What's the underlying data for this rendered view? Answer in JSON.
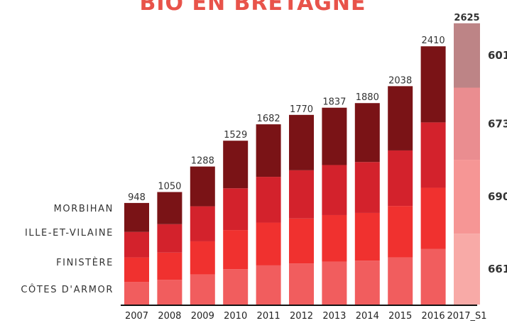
{
  "chart_data": {
    "type": "bar",
    "stacked": true,
    "title": "BIO EN BRETAGNE",
    "categories": [
      "2007",
      "2008",
      "2009",
      "2010",
      "2011",
      "2012",
      "2013",
      "2014",
      "2015",
      "2016",
      "2017_S1"
    ],
    "totals": [
      "948",
      "1050",
      "1288",
      "1529",
      "1682",
      "1770",
      "1837",
      "1880",
      "2038",
      "2410",
      "2625"
    ],
    "series": [
      {
        "name": "CÔTES D'ARMOR",
        "values": [
          210,
          230,
          280,
          330,
          365,
          383,
          400,
          410,
          440,
          520,
          661
        ],
        "color": "#f15d5e"
      },
      {
        "name": "FINISTÈRE",
        "values": [
          230,
          255,
          310,
          365,
          400,
          420,
          435,
          445,
          480,
          570,
          690
        ],
        "color": "#f0312f"
      },
      {
        "name": "ILLE-ET-VILAINE",
        "values": [
          238,
          265,
          327,
          390,
          427,
          450,
          467,
          475,
          518,
          610,
          673
        ],
        "color": "#d3222c"
      },
      {
        "name": "MORBIHAN",
        "values": [
          270,
          300,
          371,
          444,
          490,
          517,
          535,
          550,
          600,
          710,
          601
        ],
        "color": "#7a1316"
      }
    ],
    "last_bar_colors": [
      "#f8aaa7",
      "#f69695",
      "#ea8d90",
      "#bd8486"
    ],
    "last_bar_labels": [
      "661",
      "690",
      "673",
      "601"
    ],
    "ylim": [
      0,
      2650
    ]
  }
}
